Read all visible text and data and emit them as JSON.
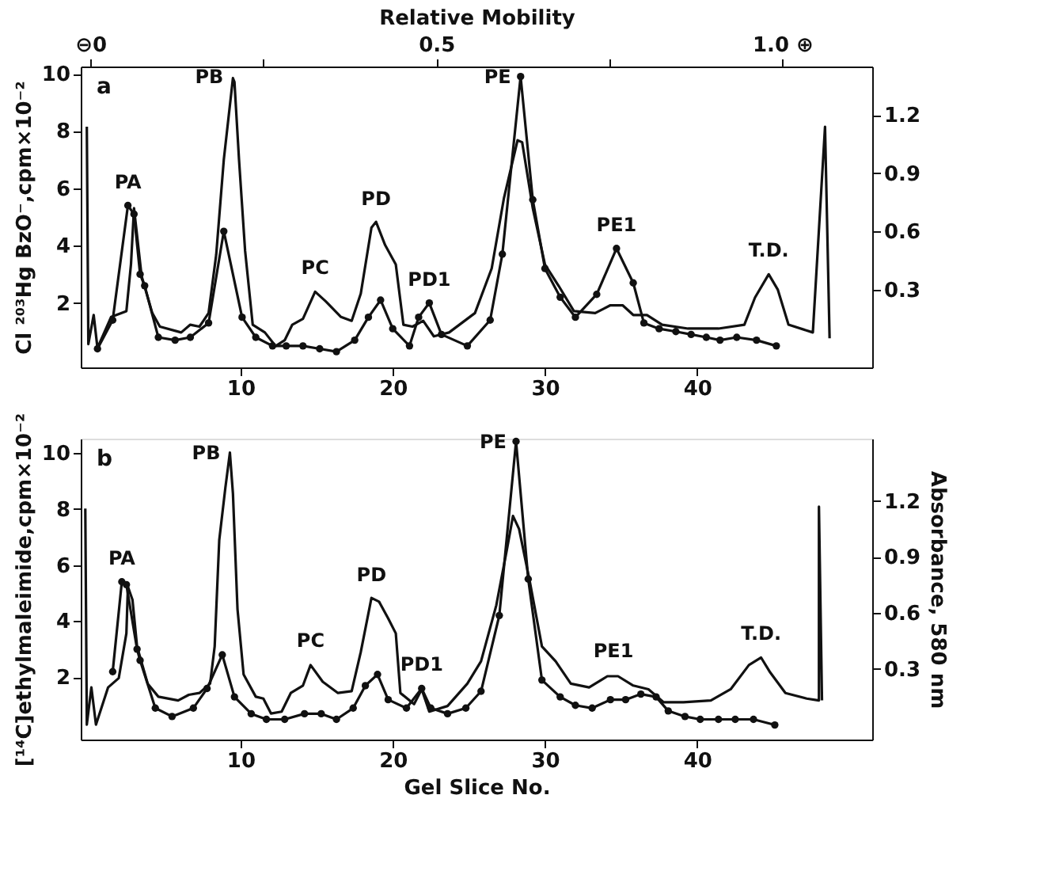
{
  "chart_data": [
    {
      "type": "line",
      "x2label": "Relative Mobility",
      "ylabel": "Cl ²⁰³Hg BzO⁻,cpm×10⁻²",
      "xlim": [
        -0.5,
        51.5
      ],
      "xticks": [
        10,
        20,
        30,
        40
      ],
      "x2lim": [
        -0.014,
        1.13
      ],
      "x2ticks": [
        {
          "value": 0,
          "label": "⊖0"
        },
        {
          "value": 0.25,
          "label": null
        },
        0.5,
        {
          "value": 0.75,
          "label": null
        },
        {
          "value": 1.0,
          "label": "1.0 ⊕"
        }
      ],
      "ylim": [
        -0.25,
        10.25
      ],
      "yticks": [
        2,
        4,
        6,
        8,
        10
      ],
      "y2lim": [
        -0.1,
        1.45
      ],
      "y2ticks": [
        0.3,
        0.6,
        0.9,
        1.2
      ],
      "grid": false,
      "line_style": "solid",
      "series": [
        {
          "color": "#111111",
          "marker": "circle",
          "x": [
            0.6,
            1.6,
            2.6,
            3.0,
            3.4,
            3.7,
            4.6,
            5.7,
            6.7,
            7.9,
            8.9,
            10.1,
            11.0,
            12.1,
            13.0,
            14.1,
            15.2,
            16.3,
            17.5,
            18.4,
            19.2,
            20.0,
            21.1,
            21.7,
            22.4,
            23.2,
            24.9,
            26.4,
            27.2,
            28.4,
            29.2,
            30.0,
            31.0,
            32.0,
            33.4,
            34.7,
            35.8,
            36.5,
            37.5,
            38.6,
            39.6,
            40.6,
            41.5,
            42.6,
            43.9,
            45.2
          ],
          "values": [
            0.4,
            1.4,
            5.4,
            5.1,
            3.0,
            2.6,
            0.8,
            0.7,
            0.8,
            1.3,
            4.5,
            1.5,
            0.8,
            0.5,
            0.5,
            0.5,
            0.4,
            0.3,
            0.7,
            1.5,
            2.1,
            1.1,
            0.5,
            1.5,
            2.0,
            0.9,
            0.5,
            1.4,
            3.7,
            9.9,
            5.6,
            3.2,
            2.2,
            1.5,
            2.3,
            3.9,
            2.7,
            1.3,
            1.1,
            1.0,
            0.9,
            0.8,
            0.7,
            0.8,
            0.7,
            0.5
          ]
        },
        {
          "color": "#111111",
          "marker": "none",
          "axis": "y2",
          "x": [
            -0.1,
            0.0,
            0.35,
            0.6,
            1.5,
            2.5,
            2.8,
            3.0,
            3.5,
            4.2,
            4.7,
            6.1,
            6.7,
            7.3,
            7.9,
            8.4,
            8.9,
            9.5,
            9.6,
            9.9,
            10.3,
            10.8,
            11.6,
            12.3,
            12.9,
            13.4,
            14.1,
            14.9,
            15.6,
            16.6,
            17.3,
            17.9,
            18.6,
            18.9,
            19.5,
            20.2,
            20.7,
            21.3,
            22.0,
            22.7,
            23.7,
            25.4,
            26.5,
            27.3,
            28.2,
            28.5,
            29.2,
            30.0,
            30.9,
            31.9,
            33.3,
            34.3,
            35.1,
            35.8,
            36.7,
            37.7,
            39.4,
            41.4,
            43.1,
            43.8,
            44.7,
            45.3,
            46.0,
            47.6,
            48.4,
            48.7
          ],
          "values": [
            1.14,
            0.02,
            0.17,
            0.0,
            0.16,
            0.19,
            0.43,
            0.72,
            0.37,
            0.18,
            0.11,
            0.08,
            0.12,
            0.11,
            0.18,
            0.48,
            0.97,
            1.39,
            1.37,
            0.97,
            0.5,
            0.12,
            0.08,
            0.01,
            0.04,
            0.12,
            0.15,
            0.29,
            0.24,
            0.16,
            0.14,
            0.28,
            0.62,
            0.65,
            0.53,
            0.43,
            0.12,
            0.11,
            0.14,
            0.06,
            0.08,
            0.18,
            0.41,
            0.77,
            1.07,
            1.06,
            0.72,
            0.43,
            0.32,
            0.19,
            0.18,
            0.22,
            0.22,
            0.17,
            0.17,
            0.12,
            0.1,
            0.1,
            0.12,
            0.26,
            0.38,
            0.3,
            0.12,
            0.08,
            1.14,
            0.05
          ]
        }
      ],
      "annotations": [
        "a",
        {
          "text": "PA",
          "x": 2.6,
          "y": 5.4
        },
        {
          "text": "PB",
          "x": 9.5,
          "y": 9.9
        },
        {
          "text": "PC",
          "x": 14.9,
          "y": 2.4
        },
        {
          "text": "PD",
          "x": 18.9,
          "y": 4.8
        },
        {
          "text": "PD1",
          "x": 22.4,
          "y": 2.0
        },
        {
          "text": "PE",
          "x": 28.4,
          "y": 9.9
        },
        {
          "text": "PE1",
          "x": 34.7,
          "y": 3.9
        },
        {
          "text": "T.D.",
          "x": 44.7,
          "y": 3.0
        }
      ]
    },
    {
      "type": "line",
      "xlabel": "Gel Slice No.",
      "ylabel": "[¹⁴C]ethylmaleimide,cpm×10⁻²",
      "y2label": "Absorbance, 580 nm",
      "xlim": [
        -0.5,
        51.5
      ],
      "xticks": [
        10,
        20,
        30,
        40
      ],
      "ylim": [
        -0.22,
        10.5
      ],
      "yticks": [
        2,
        4,
        6,
        8,
        10
      ],
      "y2lim": [
        -0.08,
        1.535
      ],
      "y2ticks": [
        0.3,
        0.6,
        0.9,
        1.2
      ],
      "grid": false,
      "line_style": "solid",
      "series": [
        {
          "color": "#111111",
          "marker": "circle",
          "x": [
            1.6,
            2.2,
            2.5,
            3.2,
            3.4,
            4.4,
            5.5,
            6.9,
            7.8,
            8.8,
            9.6,
            10.7,
            11.7,
            12.9,
            14.2,
            15.3,
            16.3,
            17.4,
            18.2,
            19.0,
            19.7,
            20.9,
            21.9,
            22.5,
            23.6,
            24.8,
            25.8,
            27.0,
            28.1,
            28.9,
            29.8,
            31.0,
            32.0,
            33.1,
            34.3,
            35.3,
            36.3,
            37.3,
            38.1,
            39.2,
            40.2,
            41.4,
            42.5,
            43.7,
            45.1
          ],
          "values": [
            2.2,
            5.4,
            5.3,
            3.0,
            2.6,
            0.9,
            0.6,
            0.9,
            1.6,
            2.8,
            1.3,
            0.7,
            0.5,
            0.5,
            0.7,
            0.7,
            0.5,
            0.9,
            1.7,
            2.1,
            1.2,
            0.9,
            1.6,
            0.9,
            0.7,
            0.9,
            1.5,
            4.2,
            10.4,
            5.5,
            1.9,
            1.3,
            1.0,
            0.9,
            1.2,
            1.2,
            1.4,
            1.3,
            0.8,
            0.6,
            0.5,
            0.5,
            0.5,
            0.5,
            0.3
          ]
        },
        {
          "color": "#111111",
          "marker": "none",
          "axis": "y2",
          "x": [
            -0.2,
            -0.1,
            0.2,
            0.5,
            1.3,
            2.0,
            2.5,
            2.6,
            2.9,
            3.2,
            3.9,
            4.6,
            5.9,
            6.6,
            7.3,
            8.0,
            8.3,
            8.6,
            9.0,
            9.3,
            9.5,
            9.8,
            10.2,
            11.0,
            11.5,
            12.0,
            12.7,
            13.3,
            14.1,
            14.6,
            15.4,
            16.4,
            17.3,
            17.9,
            18.6,
            19.1,
            19.7,
            20.2,
            20.5,
            21.4,
            21.9,
            22.4,
            23.6,
            24.9,
            25.8,
            26.8,
            27.5,
            27.9,
            28.3,
            29.0,
            29.8,
            30.7,
            31.7,
            32.9,
            34.1,
            34.8,
            35.8,
            36.8,
            37.8,
            39.1,
            40.9,
            42.2,
            43.4,
            44.2,
            44.8,
            45.8,
            47.2,
            48.0,
            48.0,
            48.2
          ],
          "values": [
            1.16,
            0.0,
            0.2,
            0.0,
            0.2,
            0.25,
            0.49,
            0.74,
            0.67,
            0.42,
            0.22,
            0.15,
            0.13,
            0.16,
            0.17,
            0.22,
            0.42,
            0.99,
            1.27,
            1.46,
            1.24,
            0.62,
            0.27,
            0.15,
            0.14,
            0.06,
            0.07,
            0.17,
            0.21,
            0.32,
            0.23,
            0.17,
            0.18,
            0.39,
            0.68,
            0.66,
            0.57,
            0.49,
            0.17,
            0.11,
            0.19,
            0.07,
            0.1,
            0.22,
            0.34,
            0.64,
            0.94,
            1.12,
            1.05,
            0.77,
            0.42,
            0.34,
            0.22,
            0.2,
            0.26,
            0.26,
            0.21,
            0.19,
            0.12,
            0.12,
            0.13,
            0.19,
            0.32,
            0.36,
            0.28,
            0.17,
            0.14,
            0.13,
            1.17,
            0.13
          ]
        }
      ],
      "annotations": [
        "b",
        {
          "text": "PA",
          "x": 2.2,
          "y": 5.4
        },
        {
          "text": "PB",
          "x": 9.3,
          "y": 10.0
        },
        {
          "text": "PC",
          "x": 14.6,
          "y": 2.45
        },
        {
          "text": "PD",
          "x": 18.6,
          "y": 4.8
        },
        {
          "text": "PD1",
          "x": 21.9,
          "y": 1.6
        },
        {
          "text": "PE",
          "x": 28.1,
          "y": 10.4
        },
        {
          "text": "PE1",
          "x": 34.5,
          "y": 2.1
        },
        {
          "text": "T.D.",
          "x": 44.2,
          "y": 2.7
        }
      ]
    }
  ]
}
